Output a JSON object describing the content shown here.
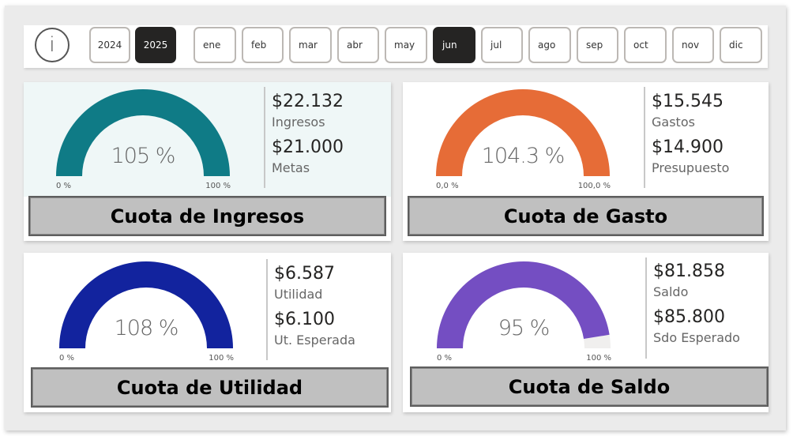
{
  "filters": {
    "info_icon": "info-icon",
    "years": [
      {
        "label": "2024",
        "selected": false
      },
      {
        "label": "2025",
        "selected": true
      }
    ],
    "months": [
      {
        "label": "ene",
        "selected": false
      },
      {
        "label": "feb",
        "selected": false
      },
      {
        "label": "mar",
        "selected": false
      },
      {
        "label": "abr",
        "selected": false
      },
      {
        "label": "may",
        "selected": false
      },
      {
        "label": "jun",
        "selected": true
      },
      {
        "label": "jul",
        "selected": false
      },
      {
        "label": "ago",
        "selected": false
      },
      {
        "label": "sep",
        "selected": false
      },
      {
        "label": "oct",
        "selected": false
      },
      {
        "label": "nov",
        "selected": false
      },
      {
        "label": "dic",
        "selected": false
      }
    ]
  },
  "cards": [
    {
      "title": "Cuota de Ingresos",
      "color": "#0f7b86",
      "gauge": {
        "value_label": "105 %",
        "percent": 105,
        "min_label": "0 %",
        "max_label": "100 %"
      },
      "kpis": [
        {
          "amount": "$22.132",
          "label": "Ingresos"
        },
        {
          "amount": "$21.000",
          "label": "Metas"
        }
      ]
    },
    {
      "title": "Cuota de Gasto",
      "color": "#e66c37",
      "gauge": {
        "value_label": "104.3 %",
        "percent": 104.3,
        "min_label": "0,0 %",
        "max_label": "100,0 %"
      },
      "kpis": [
        {
          "amount": "$15.545",
          "label": "Gastos"
        },
        {
          "amount": "$14.900",
          "label": "Presupuesto"
        }
      ]
    },
    {
      "title": "Cuota de Utilidad",
      "color": "#12239e",
      "gauge": {
        "value_label": "108 %",
        "percent": 108,
        "min_label": "0 %",
        "max_label": "100 %"
      },
      "kpis": [
        {
          "amount": "$6.587",
          "label": "Utilidad"
        },
        {
          "amount": "$6.100",
          "label": "Ut. Esperada"
        }
      ]
    },
    {
      "title": "Cuota de Saldo",
      "color": "#744ec2",
      "gauge": {
        "value_label": "95 %",
        "percent": 95,
        "min_label": "0 %",
        "max_label": "100 %"
      },
      "kpis": [
        {
          "amount": "$81.858",
          "label": "Saldo"
        },
        {
          "amount": "$85.800",
          "label": "Sdo Esperado"
        }
      ]
    }
  ],
  "colors": {
    "gauge_track": "#f0efee",
    "selected_slicer": "#252423",
    "title_button_bg": "#c0c0c0"
  }
}
